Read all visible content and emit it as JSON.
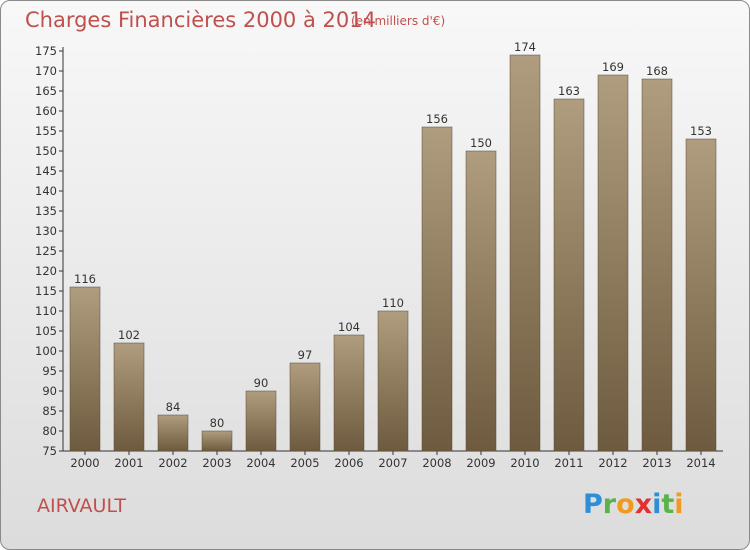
{
  "header": {
    "title": "Charges Financières 2000 à 2014",
    "subtitle": "(en milliers d'€)"
  },
  "footer": {
    "commune": "AIRVAULT",
    "logo": "Proxiti"
  },
  "colors": {
    "title": "#c0504d",
    "bar_light": "#b09c7e",
    "bar_dark": "#6e5a3e"
  },
  "chart_data": {
    "type": "bar",
    "title": "Charges Financières 2000 à 2014",
    "subtitle": "(en milliers d'€)",
    "xlabel": "",
    "ylabel": "",
    "categories": [
      "2000",
      "2001",
      "2002",
      "2003",
      "2004",
      "2005",
      "2006",
      "2007",
      "2008",
      "2009",
      "2010",
      "2011",
      "2012",
      "2013",
      "2014"
    ],
    "values": [
      116,
      102,
      84,
      80,
      90,
      97,
      104,
      110,
      156,
      150,
      174,
      163,
      169,
      168,
      153
    ],
    "ylim": [
      75,
      175
    ],
    "yticks": [
      75,
      80,
      85,
      90,
      95,
      100,
      105,
      110,
      115,
      120,
      125,
      130,
      135,
      140,
      145,
      150,
      155,
      160,
      165,
      170,
      175
    ],
    "grid": false,
    "legend": "none"
  }
}
